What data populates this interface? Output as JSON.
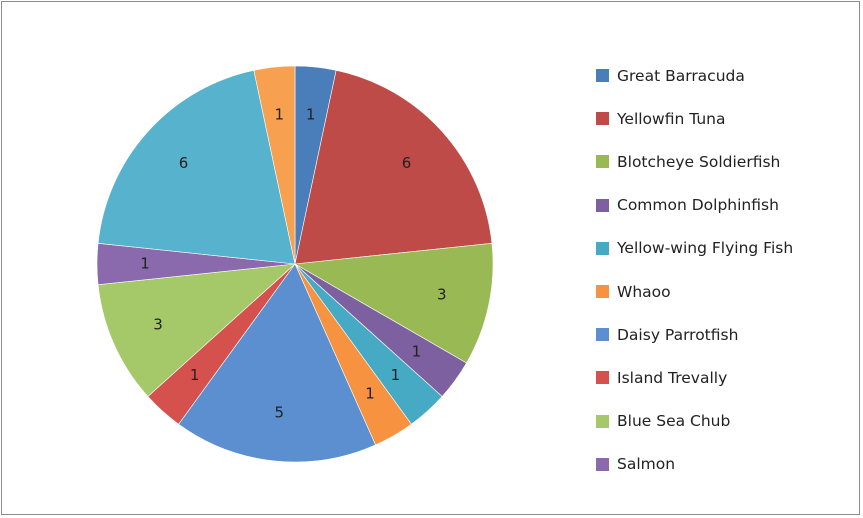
{
  "chart_data": {
    "type": "pie",
    "title": "",
    "start_angle_deg": 0,
    "direction": "clockwise",
    "legend_position": "right",
    "slices": [
      {
        "label": "Great Barracuda",
        "value": 1,
        "color": "#4a7ebb"
      },
      {
        "label": "Yellowfin Tuna",
        "value": 6,
        "color": "#be4b48"
      },
      {
        "label": "Blotcheye Soldierfish",
        "value": 3,
        "color": "#98b954"
      },
      {
        "label": "Common Dolphinfish",
        "value": 1,
        "color": "#7d60a0"
      },
      {
        "label": "Yellow-wing Flying Fish",
        "value": 1,
        "color": "#46aac5"
      },
      {
        "label": "Whaoo",
        "value": 1,
        "color": "#f69240"
      },
      {
        "label": "Daisy Parrotfish",
        "value": 5,
        "color": "#5b8fd0"
      },
      {
        "label": "Island Trevally",
        "value": 1,
        "color": "#d4514e"
      },
      {
        "label": "Blue Sea Chub",
        "value": 3,
        "color": "#a5c868"
      },
      {
        "label": "Salmon",
        "value": 1,
        "color": "#8a6aad"
      },
      {
        "label": "",
        "value": 6,
        "color": "#56b2cd"
      },
      {
        "label": "",
        "value": 1,
        "color": "#f7a04f"
      }
    ],
    "legend": [
      "Great Barracuda",
      "Yellowfin Tuna",
      "Blotcheye Soldierfish",
      "Common Dolphinfish",
      "Yellow-wing Flying Fish",
      "Whaoo",
      "Daisy Parrotfish",
      "Island Trevally",
      "Blue Sea Chub",
      "Salmon"
    ]
  }
}
